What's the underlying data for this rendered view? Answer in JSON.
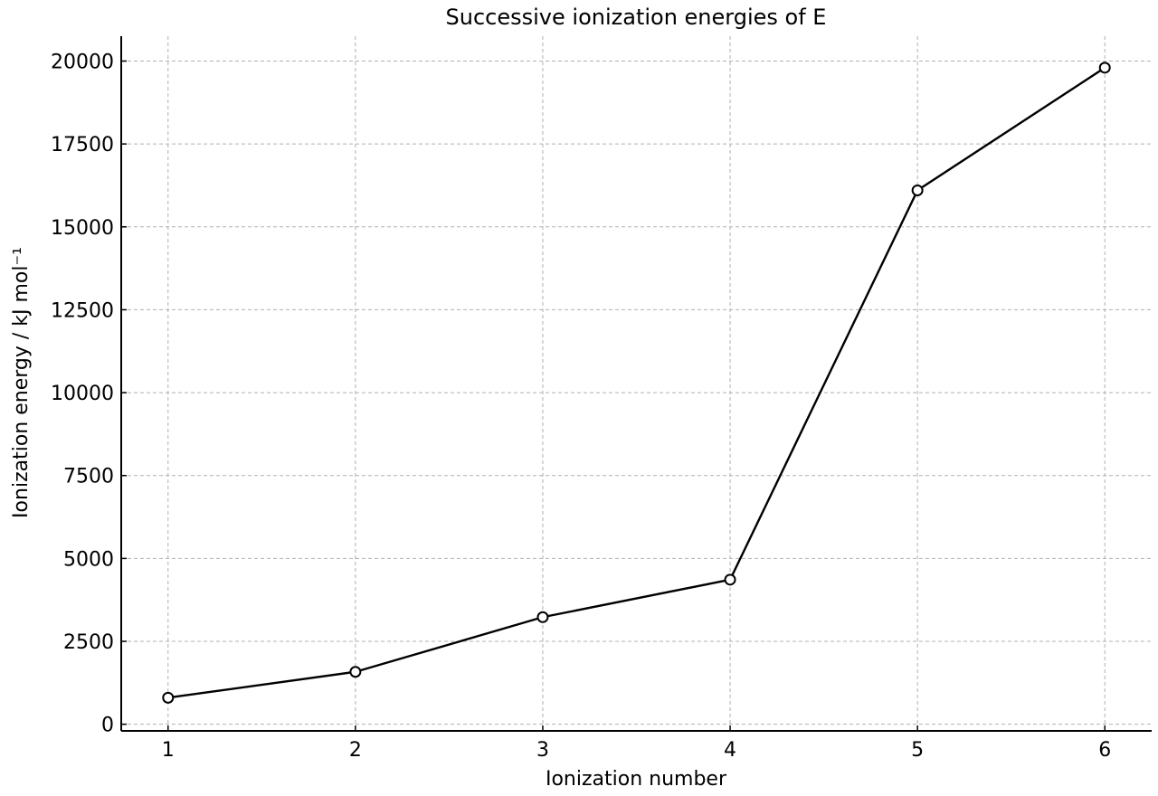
{
  "chart_data": {
    "type": "line",
    "title": "Successive ionization energies of E",
    "xlabel": "Ionization number",
    "ylabel": "Ionization energy / kJ mol⁻¹",
    "x": [
      1,
      2,
      3,
      4,
      5,
      6
    ],
    "xticks": [
      "1",
      "2",
      "3",
      "4",
      "5",
      "6"
    ],
    "xlim": [
      0.75,
      6.25
    ],
    "yticks": [
      0,
      2500,
      5000,
      7500,
      10000,
      12500,
      15000,
      17500,
      20000
    ],
    "ylim": [
      -200,
      20750
    ],
    "grid": true,
    "series": [
      {
        "values": [
          800,
          1580,
          3230,
          4360,
          16100,
          19800
        ]
      }
    ],
    "line_color": "#000000",
    "marker_fill": "#ffffff"
  }
}
